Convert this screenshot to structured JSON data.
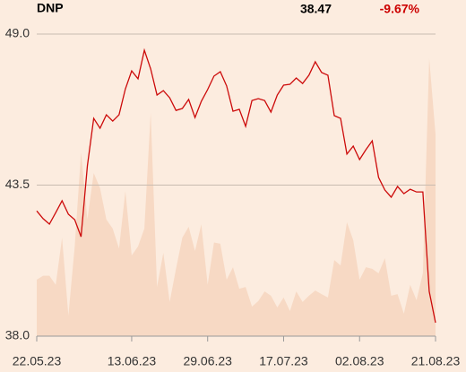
{
  "chart_data": {
    "type": "line",
    "title": "DNP",
    "price": "38.47",
    "change": "-9.67%",
    "change_color": "#cc0000",
    "categories": [
      "22.05.23",
      null,
      null,
      null,
      null,
      null,
      null,
      null,
      null,
      null,
      null,
      null,
      null,
      null,
      null,
      "13.06.23",
      null,
      null,
      null,
      null,
      null,
      null,
      null,
      null,
      null,
      null,
      null,
      "29.06.23",
      null,
      null,
      null,
      null,
      null,
      null,
      null,
      null,
      null,
      null,
      null,
      "17.07.23",
      null,
      null,
      null,
      null,
      null,
      null,
      null,
      null,
      null,
      null,
      null,
      "02.08.23",
      null,
      null,
      null,
      null,
      null,
      null,
      null,
      null,
      null,
      null,
      null,
      "21.08.23"
    ],
    "series": [
      {
        "type": "line",
        "color": "#cc0a0a",
        "values": [
          42.56,
          42.28,
          42.08,
          42.5,
          42.93,
          42.44,
          42.24,
          41.62,
          44.2,
          45.93,
          45.57,
          46.06,
          45.83,
          46.06,
          47.0,
          47.66,
          47.37,
          48.41,
          47.73,
          46.78,
          46.94,
          46.68,
          46.22,
          46.29,
          46.62,
          45.96,
          46.55,
          46.98,
          47.47,
          47.63,
          47.11,
          46.19,
          46.26,
          45.64,
          46.58,
          46.65,
          46.58,
          46.16,
          46.78,
          47.14,
          47.17,
          47.4,
          47.2,
          47.5,
          47.99,
          47.6,
          47.5,
          46.03,
          45.93,
          44.63,
          44.92,
          44.43,
          44.79,
          45.11,
          43.78,
          43.32,
          43.06,
          43.45,
          43.19,
          43.35,
          43.25,
          43.25,
          39.63,
          38.49
        ]
      },
      {
        "type": "area",
        "axis": "y2",
        "color": "#f7d9c4",
        "values": [
          18.7,
          20,
          20,
          17,
          32.6,
          6.8,
          29.7,
          60.8,
          38.6,
          54,
          49,
          38.6,
          35.6,
          29,
          48,
          26.7,
          29.7,
          35.6,
          74,
          16.3,
          27.6,
          11.3,
          22.3,
          32.6,
          36.2,
          28.2,
          37,
          17,
          31,
          30.6,
          18.7,
          22.8,
          15.7,
          16.3,
          9.8,
          11.6,
          14.8,
          13.4,
          9.5,
          12.8,
          8.3,
          14.8,
          11.3,
          13.4,
          15.1,
          13.9,
          12.8,
          25.2,
          23.4,
          37.7,
          31.8,
          18.7,
          22.8,
          22.3,
          20.8,
          25.8,
          13.4,
          13.9,
          7.4,
          17,
          11.9,
          20.8,
          92,
          66.8
        ]
      }
    ],
    "ylim": [
      38,
      49
    ],
    "yticks": [
      {
        "value": 38,
        "label": "38.0"
      },
      {
        "value": 43.5,
        "label": "43.5"
      },
      {
        "value": 49,
        "label": "49.0"
      }
    ],
    "y2lim": [
      0,
      100
    ],
    "grid": true
  }
}
